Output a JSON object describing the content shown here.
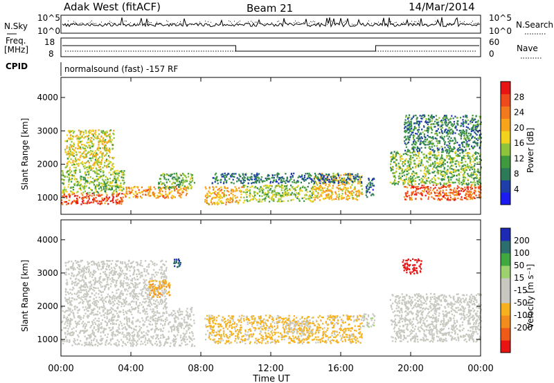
{
  "header": {
    "station": "Adak West (fitACF)",
    "beam": "Beam 21",
    "date": "14/Mar/2014"
  },
  "meta_panels": {
    "nsky_label": "N.Sky",
    "nsky_ticks": [
      "10^5",
      "10^0"
    ],
    "nsearch_label": "N.Search",
    "nsearch_ticks": [
      "10^5",
      "10^0"
    ],
    "freq_label_1": "Freq.",
    "freq_label_2": "[MHz]",
    "freq_ticks": [
      "18",
      "8"
    ],
    "nave_label": "Nave",
    "nave_ticks": [
      "60",
      "0"
    ],
    "cpid_label": "CPID",
    "cpid_text": "normalsound (fast) -157 RF"
  },
  "colors": {
    "power_scale": [
      "#1c1cf0",
      "#1e3ea8",
      "#2c7a58",
      "#3f9a3f",
      "#8ec43c",
      "#f2d21c",
      "#f6a41c",
      "#f27a1c",
      "#ee4a1c",
      "#e81414"
    ],
    "velocity_scale": [
      "#e81414",
      "#f05a18",
      "#f28c1c",
      "#f6b21e",
      "#c8c8c0",
      "#c8c8c0",
      "#9cd16e",
      "#3fa83f",
      "#2c6e6e",
      "#1c2ab4"
    ]
  },
  "chart_data": [
    {
      "type": "heatmap",
      "name": "power-panel",
      "quantity": "Power",
      "ylabel": "Slant Range [km]",
      "ylim": [
        500,
        4600
      ],
      "yticks": [
        "1000",
        "2000",
        "3000",
        "4000"
      ],
      "xlim": [
        0,
        24
      ],
      "colorbar": {
        "label": "Power [dB]",
        "range": [
          0,
          32
        ],
        "ticks": [
          "4",
          "8",
          "12",
          "16",
          "20",
          "24",
          "28"
        ]
      },
      "echo_regions": [
        {
          "t0": 0.0,
          "t1": 3.6,
          "r0": 820,
          "r1": 1150,
          "level": 27
        },
        {
          "t0": 0.0,
          "t1": 3.6,
          "r0": 1150,
          "r1": 1850,
          "level": 14
        },
        {
          "t0": 0.2,
          "t1": 3.0,
          "r0": 1850,
          "r1": 3050,
          "level": 17
        },
        {
          "t0": 3.6,
          "t1": 7.2,
          "r0": 1000,
          "r1": 1350,
          "level": 22
        },
        {
          "t0": 5.5,
          "t1": 7.6,
          "r0": 1300,
          "r1": 1750,
          "level": 12
        },
        {
          "t0": 8.2,
          "t1": 10.4,
          "r0": 820,
          "r1": 1350,
          "level": 20
        },
        {
          "t0": 10.4,
          "t1": 14.4,
          "r0": 900,
          "r1": 1400,
          "level": 14
        },
        {
          "t0": 14.4,
          "t1": 17.2,
          "r0": 950,
          "r1": 1750,
          "level": 19
        },
        {
          "t0": 8.6,
          "t1": 17.2,
          "r0": 1450,
          "r1": 1750,
          "level": 8
        },
        {
          "t0": 17.4,
          "t1": 17.9,
          "r0": 1000,
          "r1": 1600,
          "level": 6
        },
        {
          "t0": 19.6,
          "t1": 24.0,
          "r0": 950,
          "r1": 1400,
          "level": 26
        },
        {
          "t0": 18.8,
          "t1": 24.0,
          "r0": 1400,
          "r1": 2400,
          "level": 13
        },
        {
          "t0": 19.6,
          "t1": 24.0,
          "r0": 2400,
          "r1": 3500,
          "level": 9
        }
      ]
    },
    {
      "type": "heatmap",
      "name": "velocity-panel",
      "quantity": "Velocity",
      "ylabel": "Slant Range [km]",
      "xlabel": "Time UT",
      "ylim": [
        500,
        4600
      ],
      "yticks": [
        "1000",
        "2000",
        "3000",
        "4000"
      ],
      "xlim": [
        0,
        24
      ],
      "xticks": [
        "00:00",
        "04:00",
        "08:00",
        "12:00",
        "16:00",
        "20:00",
        "00:00"
      ],
      "colorbar": {
        "label": "Velocity [m s⁻¹]",
        "range": [
          -250,
          250
        ],
        "ticks": [
          "200",
          "100",
          "50",
          "15",
          "-15",
          "-50",
          "-100",
          "-200"
        ]
      },
      "echo_regions": [
        {
          "t0": 0.0,
          "t1": 7.6,
          "r0": 820,
          "r1": 2000,
          "level": 0
        },
        {
          "t0": 0.2,
          "t1": 6.0,
          "r0": 2000,
          "r1": 3400,
          "level": 5
        },
        {
          "t0": 5.0,
          "t1": 6.2,
          "r0": 2300,
          "r1": 2800,
          "level": -90
        },
        {
          "t0": 8.2,
          "t1": 17.2,
          "r0": 900,
          "r1": 1750,
          "level": -60
        },
        {
          "t0": 12.8,
          "t1": 14.4,
          "r0": 1200,
          "r1": 1600,
          "level": -40
        },
        {
          "t0": 17.2,
          "t1": 17.9,
          "r0": 1400,
          "r1": 1800,
          "level": 40
        },
        {
          "t0": 18.8,
          "t1": 24.0,
          "r0": 950,
          "r1": 2400,
          "level": 0
        },
        {
          "t0": 19.5,
          "t1": 20.6,
          "r0": 3000,
          "r1": 3450,
          "level": -220
        },
        {
          "t0": 6.4,
          "t1": 6.9,
          "r0": 3200,
          "r1": 3500,
          "level": 200
        }
      ]
    }
  ]
}
